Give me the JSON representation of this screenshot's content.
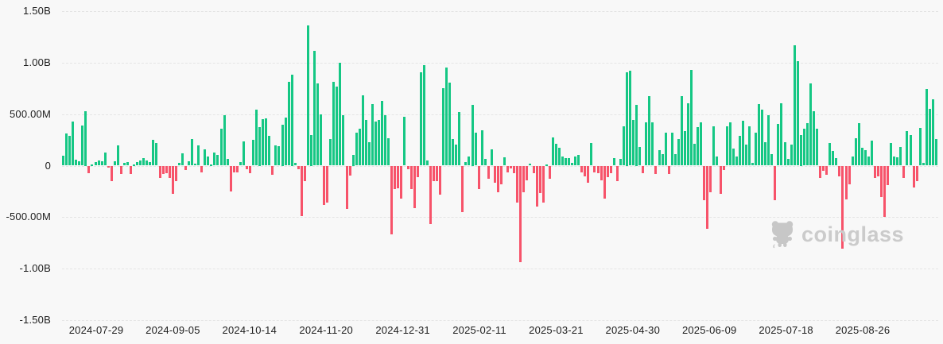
{
  "page": {
    "background": "#f8f8f8"
  },
  "watermark": {
    "brand": "coinglass",
    "icon": "coinglass-mascot-icon",
    "color": "#c7c7c7"
  },
  "chart_data": {
    "type": "bar",
    "title": "",
    "xlabel": "",
    "ylabel": "",
    "grid": "horizontal-dashed",
    "legend": "none",
    "y_tick_labels": [
      "1.50B",
      "1.00B",
      "500.00M",
      "0",
      "-500.00M",
      "-1.00B",
      "-1.50B"
    ],
    "ylim_millions": [
      -1500,
      1500
    ],
    "x_tick_labels": [
      "2024-07-29",
      "2024-09-05",
      "2024-10-14",
      "2024-11-20",
      "2024-12-31",
      "2025-02-11",
      "2025-03-21",
      "2025-04-30",
      "2025-06-09",
      "2025-07-18",
      "2025-08-26"
    ],
    "colors": {
      "positive": "#15c784",
      "negative": "#f7536a"
    },
    "values_unit": "millions_USD",
    "values": [
      100,
      310,
      290,
      430,
      55,
      40,
      390,
      525,
      -76,
      5,
      35,
      50,
      40,
      127,
      -20,
      -147,
      46,
      200,
      -84,
      28,
      36,
      -84,
      8,
      36,
      53,
      76,
      53,
      36,
      254,
      216,
      -122,
      -84,
      -76,
      -122,
      -274,
      -147,
      30,
      120,
      -45,
      45,
      260,
      20,
      200,
      -63,
      159,
      88,
      8,
      131,
      106,
      358,
      492,
      68,
      -254,
      -63,
      -63,
      38,
      234,
      -38,
      -76,
      249,
      546,
      376,
      449,
      462,
      292,
      -89,
      198,
      190,
      401,
      470,
      812,
      883,
      30,
      -38,
      -490,
      -152,
      1360,
      295,
      1115,
      795,
      500,
      -385,
      -360,
      256,
      813,
      769,
      1000,
      487,
      -423,
      -97,
      108,
      320,
      359,
      680,
      440,
      230,
      594,
      430,
      440,
      627,
      487,
      269,
      -666,
      -230,
      -218,
      -320,
      474,
      -38,
      -230,
      -410,
      -115,
      903,
      974,
      51,
      -569,
      -154,
      -154,
      -282,
      751,
      956,
      808,
      256,
      205,
      518,
      -449,
      31,
      90,
      590,
      321,
      -231,
      346,
      64,
      -128,
      159,
      -167,
      -256,
      -180,
      82,
      -64,
      -26,
      -77,
      -359,
      -940,
      -256,
      -141,
      18,
      -77,
      -397,
      -269,
      -359,
      13,
      -128,
      270,
      210,
      172,
      90,
      77,
      77,
      26,
      90,
      103,
      -64,
      -103,
      -167,
      218,
      -64,
      -77,
      -141,
      -320,
      -115,
      -77,
      77,
      -154,
      64,
      385,
      910,
      923,
      441,
      590,
      180,
      -77,
      423,
      672,
      423,
      -82,
      149,
      115,
      320,
      -82,
      320,
      115,
      256,
      672,
      333,
      608,
      928,
      210,
      372,
      423,
      -333,
      -610,
      -262,
      380,
      90,
      -270,
      -46,
      385,
      423,
      167,
      90,
      287,
      436,
      205,
      385,
      26,
      320,
      595,
      544,
      226,
      492,
      115,
      -333,
      403,
      603,
      226,
      64,
      205,
      1170,
      1013,
      295,
      359,
      410,
      795,
      526,
      359,
      -121,
      -51,
      -85,
      218,
      141,
      77,
      -103,
      -808,
      -328,
      -180,
      90,
      269,
      410,
      174,
      154,
      90,
      244,
      -121,
      -103,
      -308,
      -500,
      -190,
      218,
      90,
      82,
      180,
      -120,
      333,
      300,
      -213,
      -154,
      364,
      26,
      744,
      551,
      641,
      256
    ]
  }
}
